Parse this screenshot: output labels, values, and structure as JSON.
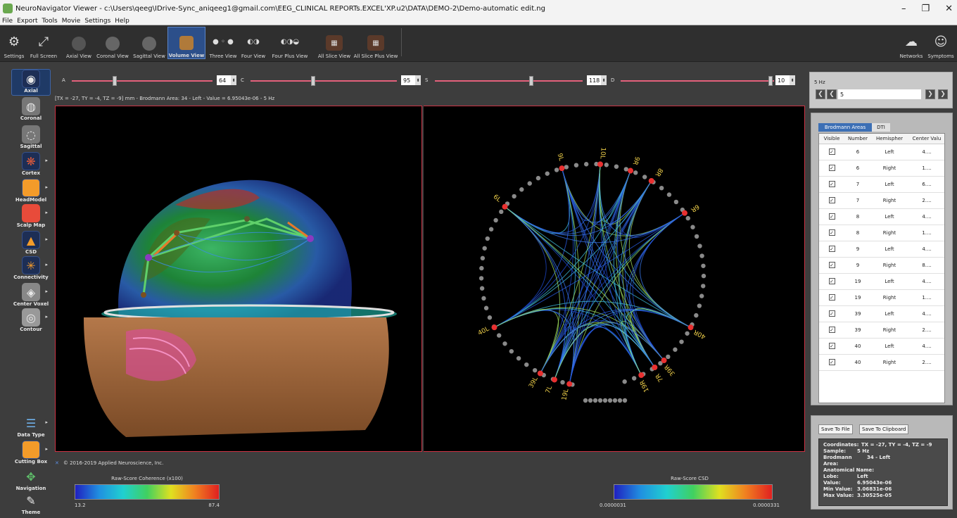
{
  "window": {
    "title": "NeuroNavigator Viewer - c:\\Users\\qeeg\\IDrive-Sync_aniqeeg1@gmail.com\\EEG_CLINICAL REPORTs.EXCEL'XP.u2\\DATA\\DEMO-2\\Demo-automatic edit.ng",
    "minimize": "–",
    "maximize": "❐",
    "close": "✕"
  },
  "menu": [
    "File",
    "Export",
    "Tools",
    "Movie",
    "Settings",
    "Help"
  ],
  "toolbar": {
    "settings": "Settings",
    "full_screen": "Full Screen",
    "axial_view": "Axial View",
    "coronal_view": "Coronal View",
    "sagittal_view": "Sagittal View",
    "volume_view": "Volume View",
    "three_view": "Three View",
    "four_view": "Four View",
    "four_plus_view": "Four Plus View",
    "all_slice_view": "All Slice View",
    "all_slice_plus_view": "All Slice Plus View",
    "networks": "Networks",
    "symptoms": "Symptoms"
  },
  "left_tools": {
    "axial": "Axial",
    "coronal": "Coronal",
    "sagittal": "Sagittal",
    "cortex": "Cortex",
    "headmodel": "HeadModel",
    "scalp_map": "Scalp Map",
    "csd": "CSD",
    "connectivity": "Connectivity",
    "center_voxel": "Center Voxel",
    "contour": "Contour",
    "data_type": "Data Type",
    "cutting_box": "Cutting Box",
    "navigation": "Navigation",
    "theme": "Theme"
  },
  "sliders": {
    "a_label": "A",
    "a_value": "64",
    "c_label": "C",
    "c_value": "95",
    "s_label": "S",
    "s_value": "118",
    "d_label": "D",
    "d_value": "10"
  },
  "status_line": "[TX = -27, TY = -4, TZ = -9] mm - Brodmann Area: 34 - Left - Value = 6.95043e-06 - 5 Hz",
  "connectogram": {
    "labels": [
      "9L",
      "10L",
      "9R",
      "8R",
      "6L",
      "6R",
      "40L",
      "40R",
      "39L",
      "7L",
      "19L",
      "19R",
      "7R",
      "39R"
    ]
  },
  "copyright": "© 2016-2019 Applied Neuroscience, Inc.",
  "legend_left": {
    "title": "Raw-Score Coherence (x100)",
    "min": "13.2",
    "max": "87.4"
  },
  "legend_right": {
    "title": "Raw-Score CSD",
    "min": "0.0000031",
    "max": "0.0000331"
  },
  "frequency_panel": {
    "label": "5 Hz",
    "value": "5",
    "first": "❮",
    "prev": "❮",
    "next": "❯",
    "last": "❯"
  },
  "areas_panel": {
    "tab_active": "Brodmann Areas",
    "tab_other": "DTI",
    "columns": [
      "Visible",
      "Number",
      "Hemispher",
      "Center Valu"
    ],
    "rows": [
      {
        "number": "6",
        "hemisphere": "Left",
        "value": "4...."
      },
      {
        "number": "6",
        "hemisphere": "Right",
        "value": "1...."
      },
      {
        "number": "7",
        "hemisphere": "Left",
        "value": "6...."
      },
      {
        "number": "7",
        "hemisphere": "Right",
        "value": "2...."
      },
      {
        "number": "8",
        "hemisphere": "Left",
        "value": "4...."
      },
      {
        "number": "8",
        "hemisphere": "Right",
        "value": "1...."
      },
      {
        "number": "9",
        "hemisphere": "Left",
        "value": "4...."
      },
      {
        "number": "9",
        "hemisphere": "Right",
        "value": "8...."
      },
      {
        "number": "19",
        "hemisphere": "Left",
        "value": "4...."
      },
      {
        "number": "19",
        "hemisphere": "Right",
        "value": "1...."
      },
      {
        "number": "39",
        "hemisphere": "Left",
        "value": "4...."
      },
      {
        "number": "39",
        "hemisphere": "Right",
        "value": "2...."
      },
      {
        "number": "40",
        "hemisphere": "Left",
        "value": "4...."
      },
      {
        "number": "40",
        "hemisphere": "Right",
        "value": "2...."
      }
    ]
  },
  "info_panel": {
    "save_file": "Save To File",
    "save_clipboard": "Save To Clipboard",
    "coordinates_key": "Coordinates:",
    "coordinates_val": "TX = -27, TY = -4, TZ = -9",
    "sample_key": "Sample:",
    "sample_val": "5 Hz",
    "brodmann_key": "Brodmann Area:",
    "brodmann_val": "34 - Left",
    "anatomical_key": "Anatomical Name:",
    "lobe_key": "Lobe:",
    "lobe_val": "Left",
    "value_key": "Value:",
    "value_val": "6.95043e-06",
    "min_key": "Min Value:",
    "min_val": "3.06831e-06",
    "max_key": "Max Value:",
    "max_val": "3.30525e-05"
  }
}
